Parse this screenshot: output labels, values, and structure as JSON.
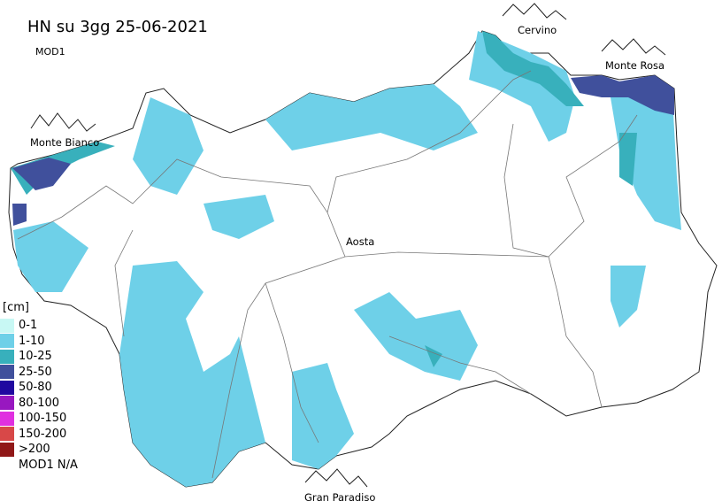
{
  "title": "HN su 3gg 25-06-2021",
  "subtitle": "MOD1",
  "places": {
    "monte_bianco": "Monte Bianco",
    "cervino": "Cervino",
    "monte_rosa": "Monte Rosa",
    "gran_paradiso": "Gran Paradiso",
    "aosta": "Aosta"
  },
  "legend": {
    "unit": "[cm]",
    "items": [
      {
        "label": "0-1",
        "color": "#c8f8f4"
      },
      {
        "label": "1-10",
        "color": "#6ed0e8"
      },
      {
        "label": "10-25",
        "color": "#38b0bc"
      },
      {
        "label": "25-50",
        "color": "#40509c"
      },
      {
        "label": "50-80",
        "color": "#2008a0"
      },
      {
        "label": "80-100",
        "color": "#9818c0"
      },
      {
        "label": "100-150",
        "color": "#e030e0"
      },
      {
        "label": "150-200",
        "color": "#d84848"
      },
      {
        "label": ">200",
        "color": "#901818"
      },
      {
        "label": "MOD1 N/A",
        "color": "#ffffff"
      }
    ]
  }
}
